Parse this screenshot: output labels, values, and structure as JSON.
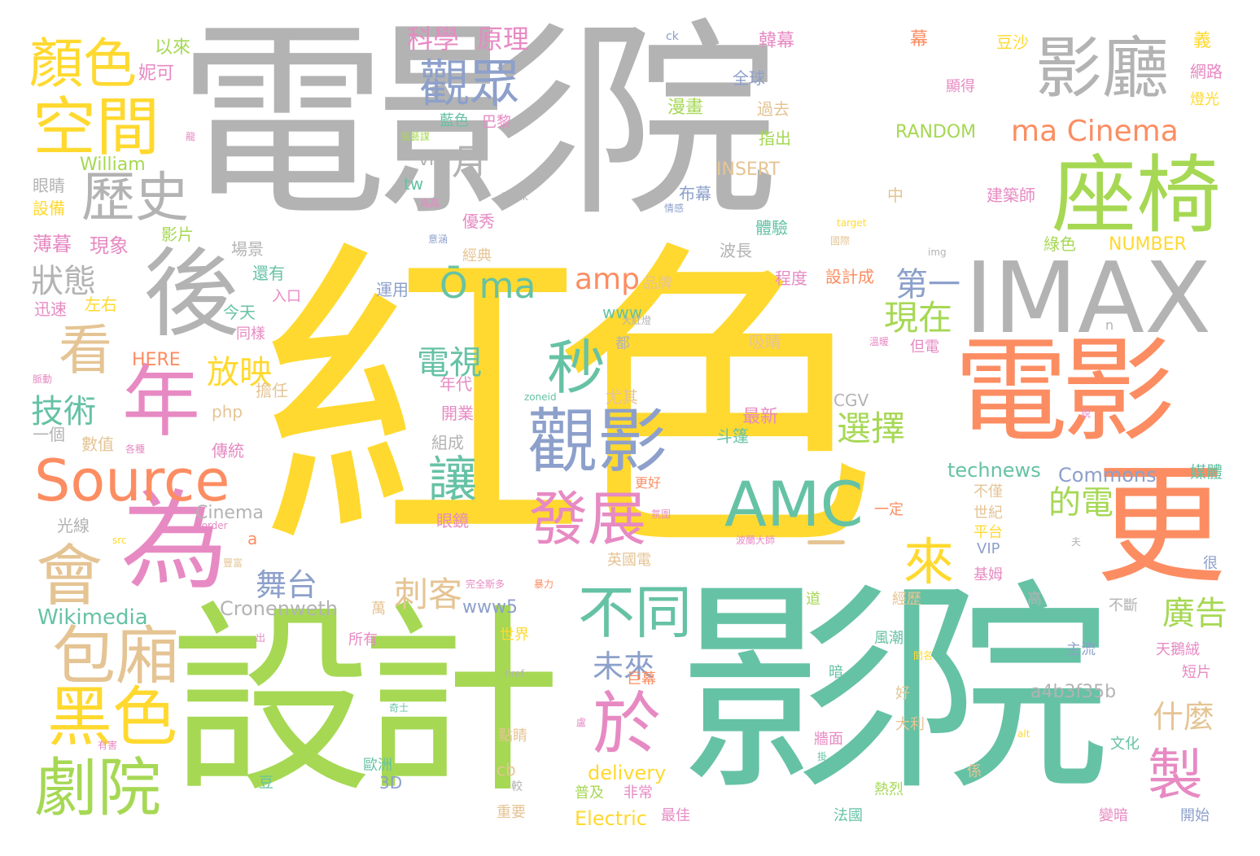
{
  "palette": {
    "gray": "#b3b3b3",
    "yellow": "#ffd92f",
    "green": "#a6d854",
    "teal": "#66c2a5",
    "orange": "#fc8d62",
    "pink": "#e78ac3",
    "blue": "#8da0cb",
    "tan": "#e5c494"
  },
  "words": [
    {
      "text": "電影院",
      "color": "gray"
    },
    {
      "text": "紅色",
      "color": "yellow"
    },
    {
      "text": "設計",
      "color": "green"
    },
    {
      "text": "影院",
      "color": "teal"
    },
    {
      "text": "電影",
      "color": "orange"
    },
    {
      "text": "IMAX",
      "color": "gray"
    },
    {
      "text": "座椅",
      "color": "green"
    },
    {
      "text": "影廳",
      "color": "gray"
    },
    {
      "text": "更",
      "color": "orange"
    },
    {
      "text": "後",
      "color": "gray"
    },
    {
      "text": "為",
      "color": "pink"
    },
    {
      "text": "年",
      "color": "pink"
    },
    {
      "text": "Source",
      "color": "orange"
    },
    {
      "text": "AMC",
      "color": "teal"
    },
    {
      "text": "顏色",
      "color": "yellow"
    },
    {
      "text": "空間",
      "color": "yellow"
    },
    {
      "text": "觀眾",
      "color": "blue"
    },
    {
      "text": "歷史",
      "color": "gray"
    },
    {
      "text": "看",
      "color": "tan"
    },
    {
      "text": "會",
      "color": "tan"
    },
    {
      "text": "包廂",
      "color": "tan"
    },
    {
      "text": "黑色",
      "color": "yellow"
    },
    {
      "text": "劇院",
      "color": "green"
    },
    {
      "text": "觀影",
      "color": "blue"
    },
    {
      "text": "秒",
      "color": "teal"
    },
    {
      "text": "發展",
      "color": "pink"
    },
    {
      "text": "讓",
      "color": "teal"
    },
    {
      "text": "於",
      "color": "pink"
    },
    {
      "text": "不同",
      "color": "teal"
    },
    {
      "text": "來",
      "color": "yellow"
    },
    {
      "text": "製",
      "color": "pink"
    },
    {
      "text": "Ō ma",
      "color": "teal"
    },
    {
      "text": "ma Cinema",
      "color": "orange"
    },
    {
      "text": "月",
      "color": "gray"
    },
    {
      "text": "amp",
      "color": "orange"
    },
    {
      "text": "狀態",
      "color": "gray"
    },
    {
      "text": "技術",
      "color": "teal"
    },
    {
      "text": "放映",
      "color": "yellow"
    },
    {
      "text": "電視",
      "color": "teal"
    },
    {
      "text": "現在",
      "color": "green"
    },
    {
      "text": "選擇",
      "color": "green"
    },
    {
      "text": "第一",
      "color": "blue"
    },
    {
      "text": "的電",
      "color": "green"
    },
    {
      "text": "刺客",
      "color": "tan"
    },
    {
      "text": "舞台",
      "color": "blue"
    },
    {
      "text": "未來",
      "color": "blue"
    },
    {
      "text": "廣告",
      "color": "green"
    },
    {
      "text": "什麼",
      "color": "tan"
    },
    {
      "text": "科學",
      "color": "pink"
    },
    {
      "text": "原理",
      "color": "pink"
    },
    {
      "text": "Cronenweth",
      "color": "gray"
    },
    {
      "text": "Wikimedia",
      "color": "teal"
    },
    {
      "text": "Commons",
      "color": "blue"
    },
    {
      "text": "technews",
      "color": "teal"
    },
    {
      "text": "a4b3f35b",
      "color": "gray"
    },
    {
      "text": "Electric",
      "color": "yellow"
    },
    {
      "text": "delivery",
      "color": "yellow"
    },
    {
      "text": "www5",
      "color": "blue"
    },
    {
      "text": "RANDOM",
      "color": "green"
    },
    {
      "text": "INSERT",
      "color": "tan"
    },
    {
      "text": "NUMBER",
      "color": "yellow"
    },
    {
      "text": "William",
      "color": "green"
    },
    {
      "text": "Cinema",
      "color": "gray"
    },
    {
      "text": "HERE",
      "color": "orange"
    },
    {
      "text": "CGV",
      "color": "gray"
    },
    {
      "text": "www",
      "color": "teal"
    },
    {
      "text": "php",
      "color": "tan"
    },
    {
      "text": "via",
      "color": "gray"
    },
    {
      "text": "tw",
      "color": "teal"
    },
    {
      "text": "3D",
      "color": "blue"
    },
    {
      "text": "cb",
      "color": "tan"
    },
    {
      "text": "VIP",
      "color": "blue"
    },
    {
      "text": "ck",
      "color": "blue"
    },
    {
      "text": "a",
      "color": "orange"
    },
    {
      "text": "n",
      "color": "gray"
    },
    {
      "text": "blank",
      "color": "gray"
    },
    {
      "text": "target",
      "color": "yellow"
    },
    {
      "text": "img",
      "color": "gray"
    },
    {
      "text": "zoneid",
      "color": "teal"
    },
    {
      "text": "src",
      "color": "yellow"
    },
    {
      "text": "border",
      "color": "pink"
    },
    {
      "text": "href",
      "color": "gray"
    },
    {
      "text": "alt",
      "color": "yellow"
    },
    {
      "text": "妮可",
      "color": "pink"
    },
    {
      "text": "以來",
      "color": "green"
    },
    {
      "text": "韓幕",
      "color": "pink"
    },
    {
      "text": "幕",
      "color": "orange"
    },
    {
      "text": "豆沙",
      "color": "yellow"
    },
    {
      "text": "義",
      "color": "yellow"
    },
    {
      "text": "網路",
      "color": "pink"
    },
    {
      "text": "燈光",
      "color": "yellow"
    },
    {
      "text": "全球",
      "color": "blue"
    },
    {
      "text": "漫畫",
      "color": "green"
    },
    {
      "text": "過去",
      "color": "tan"
    },
    {
      "text": "藍色",
      "color": "teal"
    },
    {
      "text": "巴黎",
      "color": "pink"
    },
    {
      "text": "指出",
      "color": "green"
    },
    {
      "text": "顯得",
      "color": "pink"
    },
    {
      "text": "張藝謀",
      "color": "green"
    },
    {
      "text": "眼睛",
      "color": "gray"
    },
    {
      "text": "設備",
      "color": "yellow"
    },
    {
      "text": "高高",
      "color": "pink"
    },
    {
      "text": "情感",
      "color": "blue"
    },
    {
      "text": "布幕",
      "color": "blue"
    },
    {
      "text": "建築師",
      "color": "pink"
    },
    {
      "text": "中",
      "color": "tan"
    },
    {
      "text": "薄暮",
      "color": "pink"
    },
    {
      "text": "現象",
      "color": "pink"
    },
    {
      "text": "影片",
      "color": "green"
    },
    {
      "text": "場景",
      "color": "gray"
    },
    {
      "text": "優秀",
      "color": "pink"
    },
    {
      "text": "體驗",
      "color": "teal"
    },
    {
      "text": "意涵",
      "color": "blue"
    },
    {
      "text": "經典",
      "color": "tan"
    },
    {
      "text": "波長",
      "color": "gray"
    },
    {
      "text": "綠色",
      "color": "green"
    },
    {
      "text": "還有",
      "color": "teal"
    },
    {
      "text": "運用",
      "color": "blue"
    },
    {
      "text": "品牌",
      "color": "tan"
    },
    {
      "text": "程度",
      "color": "pink"
    },
    {
      "text": "設計成",
      "color": "orange"
    },
    {
      "text": "迅速",
      "color": "pink"
    },
    {
      "text": "左右",
      "color": "yellow"
    },
    {
      "text": "入口",
      "color": "pink"
    },
    {
      "text": "今天",
      "color": "teal"
    },
    {
      "text": "同樣",
      "color": "pink"
    },
    {
      "text": "吸睛",
      "color": "tan"
    },
    {
      "text": "大紅燈",
      "color": "gray"
    },
    {
      "text": "溫暖",
      "color": "pink"
    },
    {
      "text": "但電",
      "color": "pink"
    },
    {
      "text": "都",
      "color": "gray"
    },
    {
      "text": "擔任",
      "color": "tan"
    },
    {
      "text": "年代",
      "color": "pink"
    },
    {
      "text": "尤其",
      "color": "tan"
    },
    {
      "text": "最新",
      "color": "pink"
    },
    {
      "text": "開業",
      "color": "pink"
    },
    {
      "text": "數值",
      "color": "tan"
    },
    {
      "text": "一個",
      "color": "gray"
    },
    {
      "text": "各種",
      "color": "pink"
    },
    {
      "text": "傳統",
      "color": "pink"
    },
    {
      "text": "組成",
      "color": "gray"
    },
    {
      "text": "斗篷",
      "color": "teal"
    },
    {
      "text": "說",
      "color": "pink"
    },
    {
      "text": "媒體",
      "color": "teal"
    },
    {
      "text": "不僅",
      "color": "tan"
    },
    {
      "text": "世紀",
      "color": "tan"
    },
    {
      "text": "平台",
      "color": "yellow"
    },
    {
      "text": "更好",
      "color": "orange"
    },
    {
      "text": "一定",
      "color": "orange"
    },
    {
      "text": "光線",
      "color": "gray"
    },
    {
      "text": "眼鏡",
      "color": "pink"
    },
    {
      "text": "氛圍",
      "color": "pink"
    },
    {
      "text": "波蘭大師",
      "color": "pink"
    },
    {
      "text": "夫",
      "color": "gray"
    },
    {
      "text": "英國電",
      "color": "tan"
    },
    {
      "text": "基姆",
      "color": "pink"
    },
    {
      "text": "很",
      "color": "blue"
    },
    {
      "text": "暴力",
      "color": "orange"
    },
    {
      "text": "完全斯多",
      "color": "pink"
    },
    {
      "text": "萬",
      "color": "tan"
    },
    {
      "text": "道",
      "color": "green"
    },
    {
      "text": "經歷",
      "color": "tan"
    },
    {
      "text": "高",
      "color": "gray"
    },
    {
      "text": "不斷",
      "color": "gray"
    },
    {
      "text": "所有",
      "color": "pink"
    },
    {
      "text": "世界",
      "color": "yellow"
    },
    {
      "text": "風潮",
      "color": "teal"
    },
    {
      "text": "主流",
      "color": "blue"
    },
    {
      "text": "天鵝絨",
      "color": "pink"
    },
    {
      "text": "巨幕",
      "color": "orange"
    },
    {
      "text": "短片",
      "color": "pink"
    },
    {
      "text": "出",
      "color": "pink"
    },
    {
      "text": "暗",
      "color": "teal"
    },
    {
      "text": "好",
      "color": "tan"
    },
    {
      "text": "點睛",
      "color": "tan"
    },
    {
      "text": "牆面",
      "color": "pink"
    },
    {
      "text": "大利",
      "color": "tan"
    },
    {
      "text": "文化",
      "color": "teal"
    },
    {
      "text": "奇士",
      "color": "teal"
    },
    {
      "text": "歐洲",
      "color": "teal"
    },
    {
      "text": "較",
      "color": "gray"
    },
    {
      "text": "普及",
      "color": "green"
    },
    {
      "text": "非常",
      "color": "pink"
    },
    {
      "text": "熱烈",
      "color": "green"
    },
    {
      "text": "係",
      "color": "tan"
    },
    {
      "text": "豆",
      "color": "teal"
    },
    {
      "text": "重要",
      "color": "tan"
    },
    {
      "text": "最佳",
      "color": "pink"
    },
    {
      "text": "法國",
      "color": "teal"
    },
    {
      "text": "變暗",
      "color": "pink"
    },
    {
      "text": "開始",
      "color": "blue"
    },
    {
      "text": "有害",
      "color": "pink"
    },
    {
      "text": "豐富",
      "color": "tan"
    },
    {
      "text": "脈動",
      "color": "pink"
    },
    {
      "text": "龍",
      "color": "pink"
    },
    {
      "text": "盧",
      "color": "pink"
    },
    {
      "text": "掛",
      "color": "teal"
    },
    {
      "text": "聞名",
      "color": "yellow"
    },
    {
      "text": "國際",
      "color": "tan"
    }
  ]
}
